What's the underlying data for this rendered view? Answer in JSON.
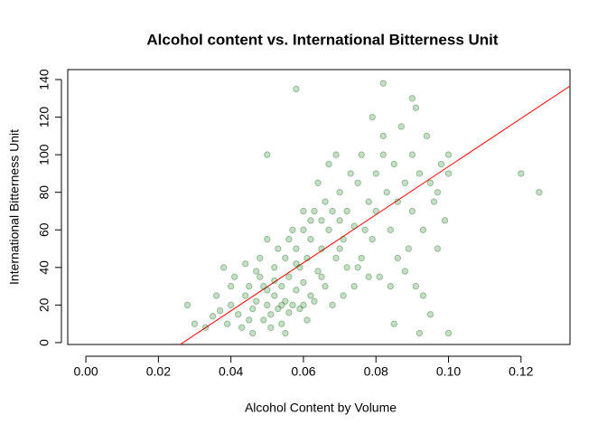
{
  "chart_data": {
    "type": "scatter",
    "title": "Alcohol content vs. International Bitterness Unit",
    "x_label": "Alcohol Content by Volume",
    "y_label": "International Bitterness  Unit",
    "xlim": [
      -0.005,
      0.1335
    ],
    "ylim": [
      -1,
      145.3
    ],
    "xticks": [
      {
        "value": 0,
        "label": "0.00"
      },
      0.02,
      0.04,
      0.06,
      0.08,
      {
        "value": 0.1,
        "label": "0.10"
      },
      0.12
    ],
    "yticks": [
      0,
      20,
      40,
      60,
      80,
      100,
      120,
      140
    ],
    "series": [
      {
        "color": "#006400",
        "x": [
          0.04,
          0.042,
          0.044,
          0.045,
          0.046,
          0.047,
          0.048,
          0.049,
          0.05,
          0.05,
          0.051,
          0.052,
          0.052,
          0.053,
          0.054,
          0.055,
          0.055,
          0.056,
          0.057,
          0.058,
          0.058,
          0.059,
          0.06,
          0.06,
          0.061,
          0.062,
          0.063,
          0.064,
          0.065,
          0.065,
          0.066,
          0.067,
          0.068,
          0.069,
          0.07,
          0.07,
          0.071,
          0.072,
          0.073,
          0.074,
          0.075,
          0.075,
          0.076,
          0.077,
          0.078,
          0.079,
          0.08,
          0.08,
          0.081,
          0.082,
          0.083,
          0.084,
          0.085,
          0.086,
          0.087,
          0.088,
          0.089,
          0.09,
          0.09,
          0.092,
          0.093,
          0.094,
          0.095,
          0.096,
          0.097,
          0.098,
          0.099,
          0.1,
          0.036,
          0.038,
          0.039,
          0.041,
          0.043,
          0.044,
          0.046,
          0.048,
          0.05,
          0.051,
          0.053,
          0.054,
          0.055,
          0.056,
          0.057,
          0.059,
          0.06,
          0.061,
          0.062,
          0.063,
          0.064,
          0.066,
          0.067,
          0.068,
          0.069,
          0.071,
          0.072,
          0.074,
          0.076,
          0.078,
          0.079,
          0.082,
          0.084,
          0.086,
          0.088,
          0.091,
          0.093,
          0.095,
          0.097,
          0.085,
          0.04,
          0.045,
          0.047,
          0.049,
          0.052,
          0.054,
          0.056,
          0.058,
          0.06,
          0.062,
          0.065,
          0.07,
          0.058,
          0.082,
          0.12,
          0.125,
          0.05,
          0.09,
          0.091,
          0.1,
          0.092,
          0.1,
          0.028,
          0.03,
          0.033,
          0.035,
          0.037
        ],
        "values": [
          20,
          15,
          25,
          30,
          18,
          22,
          35,
          12,
          20,
          28,
          15,
          40,
          25,
          18,
          30,
          22,
          45,
          35,
          20,
          50,
          28,
          40,
          60,
          32,
          45,
          55,
          70,
          38,
          65,
          50,
          75,
          60,
          70,
          45,
          80,
          65,
          55,
          70,
          90,
          62,
          85,
          40,
          100,
          60,
          75,
          55,
          90,
          70,
          35,
          110,
          80,
          60,
          95,
          75,
          115,
          85,
          50,
          100,
          70,
          90,
          60,
          110,
          85,
          75,
          50,
          95,
          65,
          90,
          25,
          40,
          10,
          35,
          8,
          42,
          5,
          45,
          55,
          8,
          50,
          10,
          5,
          55,
          60,
          18,
          20,
          12,
          25,
          22,
          85,
          30,
          95,
          20,
          100,
          25,
          40,
          30,
          45,
          35,
          120,
          100,
          30,
          45,
          38,
          30,
          25,
          15,
          80,
          10,
          30,
          12,
          38,
          30,
          33,
          20,
          16,
          42,
          70,
          65,
          35,
          50,
          135,
          138,
          90,
          80,
          100,
          130,
          125,
          100,
          5,
          5,
          20,
          10,
          8,
          14,
          17
        ]
      }
    ],
    "trend_line": {
      "slope": 1280,
      "intercept": -34.3,
      "color": "#ff0000"
    }
  }
}
